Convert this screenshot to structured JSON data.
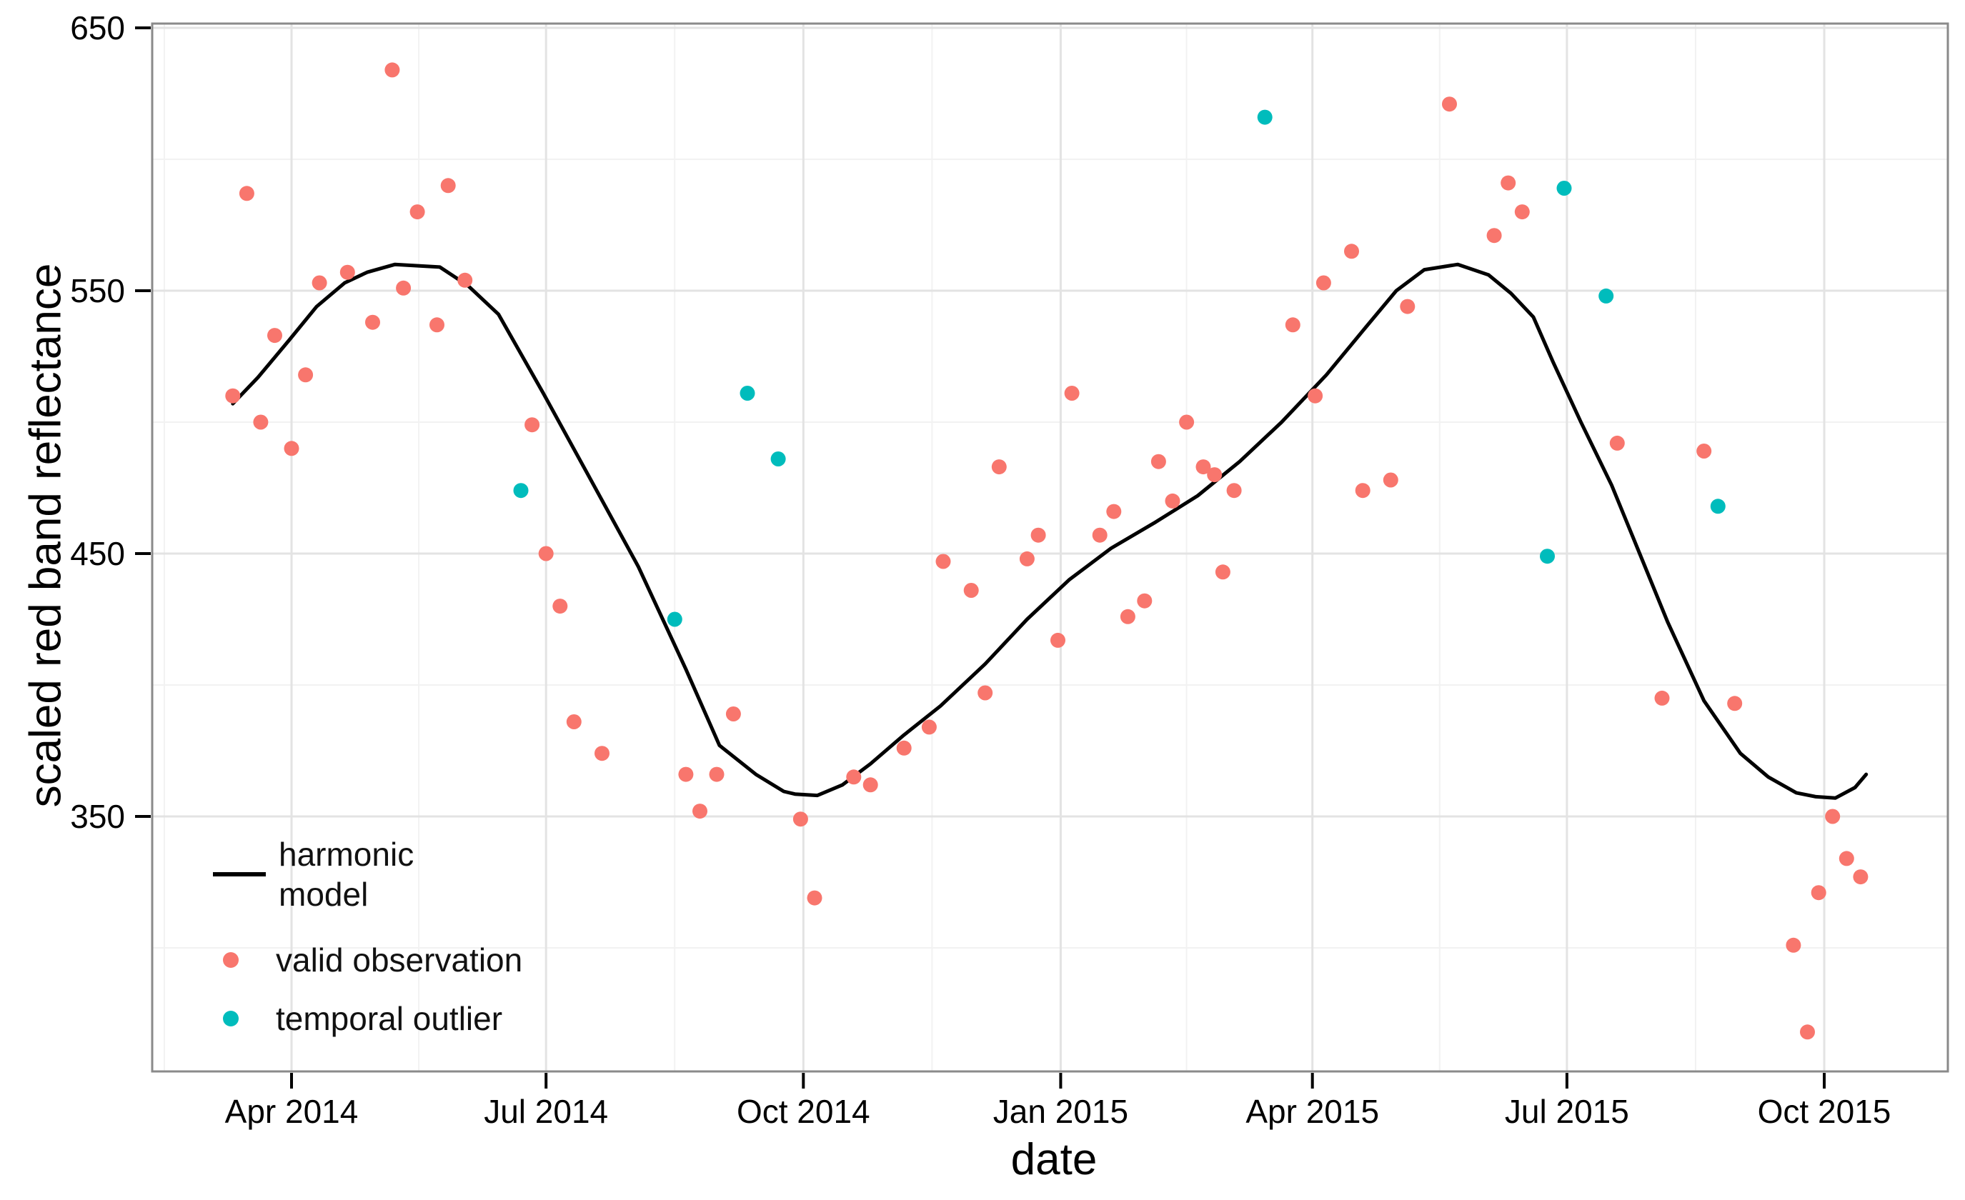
{
  "figure": {
    "x_axis": {
      "title": "date",
      "tick_labels": [
        "Apr 2014",
        "Jul 2014",
        "Oct 2014",
        "Jan 2015",
        "Apr 2015",
        "Jul 2015",
        "Oct 2015"
      ]
    },
    "y_axis": {
      "title": "scaled red band reflectance",
      "tick_labels": [
        "650",
        "550",
        "450",
        "350"
      ]
    },
    "legend": {
      "model_lines": [
        "harmonic",
        "model"
      ],
      "valid_label": "valid observation",
      "outlier_label": "temporal outlier"
    }
  },
  "chart_data": {
    "type": "scatter",
    "title": "",
    "xlabel": "date",
    "ylabel": "scaled red band reflectance",
    "xlim": [
      "2014-02-11",
      "2015-11-14"
    ],
    "ylim": [
      253,
      652
    ],
    "grid": "major+minor",
    "legend_position": "inside bottom-left",
    "x_ticks": {
      "dates": [
        "2014-04-01",
        "2014-07-01",
        "2014-10-01",
        "2015-01-01",
        "2015-04-01",
        "2015-07-01",
        "2015-10-01"
      ],
      "labels": [
        "Apr 2014",
        "Jul 2014",
        "Oct 2014",
        "Jan 2015",
        "Apr 2015",
        "Jul 2015",
        "Oct 2015"
      ]
    },
    "y_ticks": [
      650,
      550,
      450,
      350
    ],
    "y_minor_ticks": [
      600,
      500,
      400,
      300
    ],
    "colors": {
      "valid": "#f8766d",
      "outlier": "#00bcbc",
      "model": "#000000",
      "grid_major": "#e3e3e3",
      "grid_minor": "#f2f2f2",
      "panel_border": "#8a8a8a"
    },
    "series": [
      {
        "name": "harmonic model",
        "type": "line",
        "points": [
          [
            "2014-03-11",
            507
          ],
          [
            "2014-03-20",
            517
          ],
          [
            "2014-03-31",
            531
          ],
          [
            "2014-04-10",
            544
          ],
          [
            "2014-04-20",
            553
          ],
          [
            "2014-04-28",
            557
          ],
          [
            "2014-05-08",
            560
          ],
          [
            "2014-05-24",
            559
          ],
          [
            "2014-06-03",
            552
          ],
          [
            "2014-06-14",
            541
          ],
          [
            "2014-06-30",
            511
          ],
          [
            "2014-07-16",
            480
          ],
          [
            "2014-08-03",
            445
          ],
          [
            "2014-08-20",
            406
          ],
          [
            "2014-09-01",
            377
          ],
          [
            "2014-09-14",
            366
          ],
          [
            "2014-09-24",
            359.5
          ],
          [
            "2014-09-28",
            358.5
          ],
          [
            "2014-10-06",
            358
          ],
          [
            "2014-10-15",
            362
          ],
          [
            "2014-10-25",
            370
          ],
          [
            "2014-11-06",
            381
          ],
          [
            "2014-11-19",
            392
          ],
          [
            "2014-12-05",
            408
          ],
          [
            "2014-12-20",
            425
          ],
          [
            "2015-01-04",
            440
          ],
          [
            "2015-01-19",
            452
          ],
          [
            "2015-02-04",
            462
          ],
          [
            "2015-02-19",
            472
          ],
          [
            "2015-03-06",
            485
          ],
          [
            "2015-03-21",
            500
          ],
          [
            "2015-04-06",
            518
          ],
          [
            "2015-04-20",
            536
          ],
          [
            "2015-05-01",
            550
          ],
          [
            "2015-05-11",
            558
          ],
          [
            "2015-05-23",
            560
          ],
          [
            "2015-06-03",
            556
          ],
          [
            "2015-06-11",
            549
          ],
          [
            "2015-06-19",
            540
          ],
          [
            "2015-06-26",
            523
          ],
          [
            "2015-07-06",
            500
          ],
          [
            "2015-07-17",
            476
          ],
          [
            "2015-07-27",
            450
          ],
          [
            "2015-08-06",
            424
          ],
          [
            "2015-08-19",
            394
          ],
          [
            "2015-09-01",
            374
          ],
          [
            "2015-09-11",
            365
          ],
          [
            "2015-09-21",
            359
          ],
          [
            "2015-09-28",
            357.5
          ],
          [
            "2015-10-05",
            357
          ],
          [
            "2015-10-12",
            361
          ],
          [
            "2015-10-16",
            366
          ]
        ]
      },
      {
        "name": "valid observation",
        "type": "scatter",
        "points": [
          [
            "2014-03-11",
            510
          ],
          [
            "2014-03-16",
            587
          ],
          [
            "2014-03-21",
            500
          ],
          [
            "2014-03-26",
            533
          ],
          [
            "2014-04-01",
            490
          ],
          [
            "2014-04-06",
            518
          ],
          [
            "2014-04-11",
            553
          ],
          [
            "2014-04-21",
            557
          ],
          [
            "2014-04-30",
            538
          ],
          [
            "2014-05-07",
            634
          ],
          [
            "2014-05-11",
            551
          ],
          [
            "2014-05-16",
            580
          ],
          [
            "2014-05-23",
            537
          ],
          [
            "2014-05-27",
            590
          ],
          [
            "2014-06-02",
            554
          ],
          [
            "2014-06-26",
            499
          ],
          [
            "2014-07-01",
            450
          ],
          [
            "2014-07-06",
            430
          ],
          [
            "2014-07-11",
            386
          ],
          [
            "2014-07-21",
            374
          ],
          [
            "2014-08-20",
            366
          ],
          [
            "2014-08-25",
            352
          ],
          [
            "2014-08-31",
            366
          ],
          [
            "2014-09-06",
            389
          ],
          [
            "2014-09-30",
            349
          ],
          [
            "2014-10-05",
            319
          ],
          [
            "2014-10-19",
            365
          ],
          [
            "2014-10-25",
            362
          ],
          [
            "2014-11-06",
            376
          ],
          [
            "2014-11-15",
            384
          ],
          [
            "2014-11-20",
            447
          ],
          [
            "2014-11-30",
            436
          ],
          [
            "2014-12-05",
            397
          ],
          [
            "2014-12-10",
            483
          ],
          [
            "2014-12-20",
            448
          ],
          [
            "2014-12-24",
            457
          ],
          [
            "2014-12-31",
            417
          ],
          [
            "2015-01-05",
            511
          ],
          [
            "2015-01-15",
            457
          ],
          [
            "2015-01-20",
            466
          ],
          [
            "2015-01-25",
            426
          ],
          [
            "2015-01-31",
            432
          ],
          [
            "2015-02-05",
            485
          ],
          [
            "2015-02-10",
            470
          ],
          [
            "2015-02-15",
            500
          ],
          [
            "2015-02-21",
            483
          ],
          [
            "2015-02-25",
            480
          ],
          [
            "2015-02-28",
            443
          ],
          [
            "2015-03-04",
            474
          ],
          [
            "2015-03-25",
            537
          ],
          [
            "2015-04-02",
            510
          ],
          [
            "2015-04-05",
            553
          ],
          [
            "2015-04-15",
            565
          ],
          [
            "2015-04-19",
            474
          ],
          [
            "2015-04-29",
            478
          ],
          [
            "2015-05-05",
            544
          ],
          [
            "2015-05-20",
            621
          ],
          [
            "2015-06-05",
            571
          ],
          [
            "2015-06-10",
            591
          ],
          [
            "2015-06-15",
            580
          ],
          [
            "2015-07-19",
            492
          ],
          [
            "2015-08-04",
            395
          ],
          [
            "2015-08-19",
            489
          ],
          [
            "2015-08-30",
            393
          ],
          [
            "2015-09-20",
            301
          ],
          [
            "2015-09-25",
            268
          ],
          [
            "2015-09-29",
            321
          ],
          [
            "2015-10-04",
            350
          ],
          [
            "2015-10-09",
            334
          ],
          [
            "2015-10-14",
            327
          ]
        ]
      },
      {
        "name": "temporal outlier",
        "type": "scatter",
        "points": [
          [
            "2014-06-22",
            474
          ],
          [
            "2014-08-16",
            425
          ],
          [
            "2014-09-11",
            511
          ],
          [
            "2014-09-22",
            486
          ],
          [
            "2015-03-15",
            616
          ],
          [
            "2015-06-24",
            449
          ],
          [
            "2015-06-30",
            589
          ],
          [
            "2015-07-15",
            548
          ],
          [
            "2015-08-24",
            468
          ]
        ]
      }
    ]
  }
}
